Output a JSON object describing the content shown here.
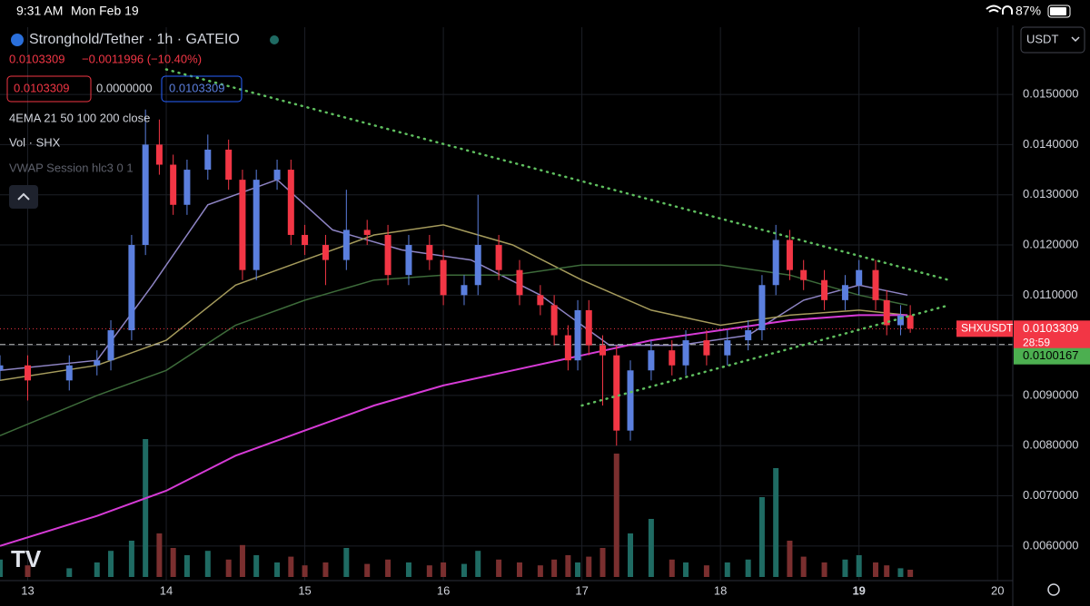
{
  "status_bar": {
    "time": "9:31 AM",
    "date": "Mon Feb 19",
    "battery": "87%"
  },
  "header": {
    "symbol": "Stronghold/Tether · 1h · GATEIO",
    "price": "0.0103309",
    "change": "−0.0011996 (−10.40%)",
    "bid": "0.0103309",
    "spread": "0.0000000",
    "ask": "0.0103309",
    "indicators": [
      "4EMA 21 50 100 200 close",
      "Vol · SHX",
      "VWAP Session hlc3 0 1"
    ]
  },
  "currency_selector": "USDT",
  "chart_data": {
    "type": "candlestick",
    "x": [
      12.8,
      13.0,
      13.3,
      13.5,
      13.6,
      13.75,
      13.85,
      13.95,
      14.05,
      14.15,
      14.3,
      14.45,
      14.55,
      14.65,
      14.8,
      14.9,
      15.0,
      15.15,
      15.3,
      15.45,
      15.6,
      15.75,
      15.9,
      16.0,
      16.15,
      16.25,
      16.4,
      16.55,
      16.7,
      16.8,
      16.9,
      16.97,
      17.05,
      17.15,
      17.25,
      17.35,
      17.5,
      17.65,
      17.75,
      17.9,
      18.05,
      18.2,
      18.3,
      18.4,
      18.5,
      18.6,
      18.75,
      18.9,
      19.0,
      19.12,
      19.2,
      19.3,
      19.37
    ],
    "open": [
      0.0095,
      0.0096,
      0.0093,
      0.0096,
      0.0097,
      0.0103,
      0.012,
      0.014,
      0.0136,
      0.0128,
      0.0135,
      0.0139,
      0.0133,
      0.0115,
      0.0133,
      0.0135,
      0.0122,
      0.012,
      0.0117,
      0.0123,
      0.0122,
      0.0114,
      0.012,
      0.0117,
      0.011,
      0.0112,
      0.012,
      0.0115,
      0.011,
      0.0108,
      0.0102,
      0.0097,
      0.0107,
      0.01,
      0.0098,
      0.0083,
      0.0095,
      0.0099,
      0.0096,
      0.0101,
      0.0098,
      0.0101,
      0.0103,
      0.0112,
      0.0121,
      0.0115,
      0.0113,
      0.0109,
      0.0112,
      0.0115,
      0.0109,
      0.0104,
      0.0106
    ],
    "high": [
      0.0098,
      0.0098,
      0.0098,
      0.0099,
      0.0105,
      0.0122,
      0.0147,
      0.0145,
      0.0138,
      0.0137,
      0.0142,
      0.0141,
      0.0135,
      0.0135,
      0.0137,
      0.0137,
      0.0124,
      0.0122,
      0.0131,
      0.0125,
      0.0124,
      0.0122,
      0.0122,
      0.0119,
      0.0114,
      0.013,
      0.0122,
      0.0117,
      0.0112,
      0.011,
      0.0104,
      0.0109,
      0.0109,
      0.0102,
      0.01,
      0.0097,
      0.0101,
      0.0101,
      0.0103,
      0.0103,
      0.0103,
      0.0105,
      0.0114,
      0.0124,
      0.0123,
      0.0117,
      0.0115,
      0.0114,
      0.0117,
      0.0117,
      0.0111,
      0.0108,
      0.0108
    ],
    "low": [
      0.0093,
      0.0089,
      0.0091,
      0.0094,
      0.0095,
      0.0101,
      0.0118,
      0.0134,
      0.0126,
      0.0126,
      0.0133,
      0.0131,
      0.0113,
      0.0113,
      0.0131,
      0.012,
      0.0118,
      0.0112,
      0.0115,
      0.012,
      0.0112,
      0.0112,
      0.0115,
      0.0108,
      0.0108,
      0.011,
      0.0113,
      0.0108,
      0.0106,
      0.01,
      0.0095,
      0.0095,
      0.0098,
      0.0088,
      0.008,
      0.0081,
      0.0093,
      0.0094,
      0.0094,
      0.0096,
      0.0096,
      0.0099,
      0.0101,
      0.011,
      0.0113,
      0.0111,
      0.0107,
      0.0107,
      0.011,
      0.0107,
      0.0102,
      0.0102,
      0.01025
    ],
    "close": [
      0.0096,
      0.0093,
      0.0096,
      0.0097,
      0.0103,
      0.012,
      0.014,
      0.0136,
      0.0128,
      0.0135,
      0.0139,
      0.0133,
      0.0115,
      0.0133,
      0.0135,
      0.0122,
      0.012,
      0.0117,
      0.0123,
      0.0122,
      0.0114,
      0.012,
      0.0117,
      0.011,
      0.0112,
      0.012,
      0.0115,
      0.011,
      0.0108,
      0.0102,
      0.0097,
      0.0107,
      0.01,
      0.0098,
      0.0083,
      0.0095,
      0.0099,
      0.0096,
      0.0101,
      0.0098,
      0.0101,
      0.0103,
      0.0112,
      0.0121,
      0.0115,
      0.0113,
      0.0109,
      0.0112,
      0.0115,
      0.0109,
      0.0104,
      0.0106,
      0.0103309
    ],
    "volume": [
      12,
      8,
      6,
      10,
      18,
      25,
      95,
      30,
      20,
      15,
      18,
      12,
      22,
      15,
      10,
      14,
      8,
      10,
      20,
      9,
      12,
      10,
      8,
      10,
      9,
      18,
      12,
      10,
      8,
      12,
      15,
      10,
      14,
      20,
      85,
      30,
      40,
      12,
      10,
      8,
      10,
      12,
      55,
      75,
      25,
      14,
      10,
      12,
      15,
      10,
      8,
      6,
      5
    ],
    "vlim": [
      0,
      100
    ],
    "up_color": "#5b7fde",
    "down_color": "#f23645",
    "volume_up_color": "#1f6b63",
    "volume_down_color": "#7a2f2f",
    "lines": [
      {
        "color": "#8e84c4",
        "x": [
          12.8,
          13.5,
          13.9,
          14.3,
          14.8,
          15.2,
          15.7,
          16.2,
          16.7,
          17.2,
          17.7,
          18.2,
          18.6,
          19.0,
          19.35
        ],
        "values": [
          0.0095,
          0.0097,
          0.0112,
          0.0128,
          0.0133,
          0.0123,
          0.0119,
          0.0117,
          0.011,
          0.01,
          0.01,
          0.0102,
          0.0109,
          0.0112,
          0.011
        ]
      },
      {
        "color": "#a59b5c",
        "x": [
          12.8,
          13.5,
          14.0,
          14.5,
          15.0,
          15.5,
          16.0,
          16.5,
          17.0,
          17.5,
          18.0,
          18.5,
          19.0,
          19.35
        ],
        "values": [
          0.0093,
          0.0096,
          0.0101,
          0.0112,
          0.0117,
          0.0122,
          0.0124,
          0.012,
          0.0113,
          0.0107,
          0.0104,
          0.0106,
          0.0107,
          0.0106
        ]
      },
      {
        "color": "#3d6b3a",
        "x": [
          12.8,
          13.5,
          14.0,
          14.5,
          15.0,
          15.5,
          16.0,
          16.5,
          17.0,
          17.5,
          18.0,
          18.5,
          19.0,
          19.35
        ],
        "values": [
          0.0082,
          0.009,
          0.0095,
          0.0104,
          0.0109,
          0.0113,
          0.0114,
          0.0114,
          0.0116,
          0.0116,
          0.0116,
          0.0114,
          0.011,
          0.0108
        ]
      },
      {
        "color": "#d63bd6",
        "x": [
          12.8,
          13.5,
          14.0,
          14.5,
          15.0,
          15.5,
          16.0,
          16.5,
          17.0,
          17.5,
          18.0,
          18.5,
          19.0,
          19.35
        ],
        "values": [
          0.006,
          0.0066,
          0.0071,
          0.0078,
          0.0083,
          0.0088,
          0.0092,
          0.0095,
          0.0098,
          0.0101,
          0.0103,
          0.0105,
          0.0106,
          0.0106
        ]
      }
    ],
    "trendlines": [
      {
        "color": "#5fbf5f",
        "x": [
          14.0,
          19.65
        ],
        "values": [
          0.0155,
          0.0113
        ]
      },
      {
        "color": "#5fbf5f",
        "x": [
          17.0,
          19.65
        ],
        "values": [
          0.0088,
          0.0108
        ]
      }
    ],
    "price_lines": [
      {
        "value": 0.0103309,
        "color": "#f23645",
        "name": "SHXUSDT",
        "countdown": "28:59"
      },
      {
        "value": 0.0100167,
        "color": "#4caf50"
      }
    ],
    "xlim": [
      12.8,
      20.11
    ],
    "ylim": [
      0.00531,
      0.01634
    ],
    "xticks": [
      13,
      14,
      15,
      16,
      17,
      18,
      19,
      20
    ],
    "yticks": [
      {
        "value": 0.006,
        "label": "0.0060000"
      },
      {
        "value": 0.007,
        "label": "0.0070000"
      },
      {
        "value": 0.008,
        "label": "0.0080000"
      },
      {
        "value": 0.009,
        "label": "0.0090000"
      },
      {
        "value": 0.01,
        "label": "0.0100000"
      },
      {
        "value": 0.011,
        "label": "0.0110000"
      },
      {
        "value": 0.012,
        "label": "0.0120000"
      },
      {
        "value": 0.013,
        "label": "0.0130000"
      },
      {
        "value": 0.014,
        "label": "0.0140000"
      },
      {
        "value": 0.015,
        "label": "0.0150000"
      }
    ],
    "grid": true
  }
}
